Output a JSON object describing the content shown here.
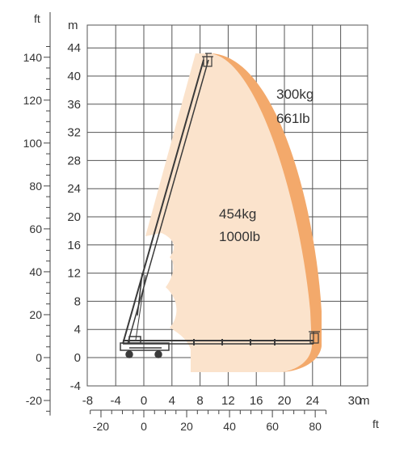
{
  "units": {
    "meters": "m",
    "feet": "ft"
  },
  "y_axis_meters": {
    "ticks": [
      44,
      40,
      36,
      32,
      28,
      24,
      20,
      16,
      12,
      8,
      4,
      0,
      -4
    ]
  },
  "y_axis_feet": {
    "ticks": [
      140,
      120,
      100,
      80,
      60,
      40,
      20,
      0,
      -20
    ]
  },
  "x_axis_meters": {
    "ticks": [
      -8,
      -4,
      0,
      4,
      8,
      12,
      16,
      20,
      24,
      30
    ]
  },
  "x_axis_feet": {
    "ticks": [
      -20,
      0,
      20,
      40,
      60,
      80
    ],
    "from": -25,
    "to": 85
  },
  "zones": {
    "outer": {
      "label_kg": "300kg",
      "label_lb": "661lb",
      "color": "#F3A96B"
    },
    "inner": {
      "label_kg": "454kg",
      "label_lb": "1000lb",
      "color": "#FBE3CC"
    }
  },
  "colors": {
    "grid": "#555555",
    "machine": "#3a3a3a"
  }
}
